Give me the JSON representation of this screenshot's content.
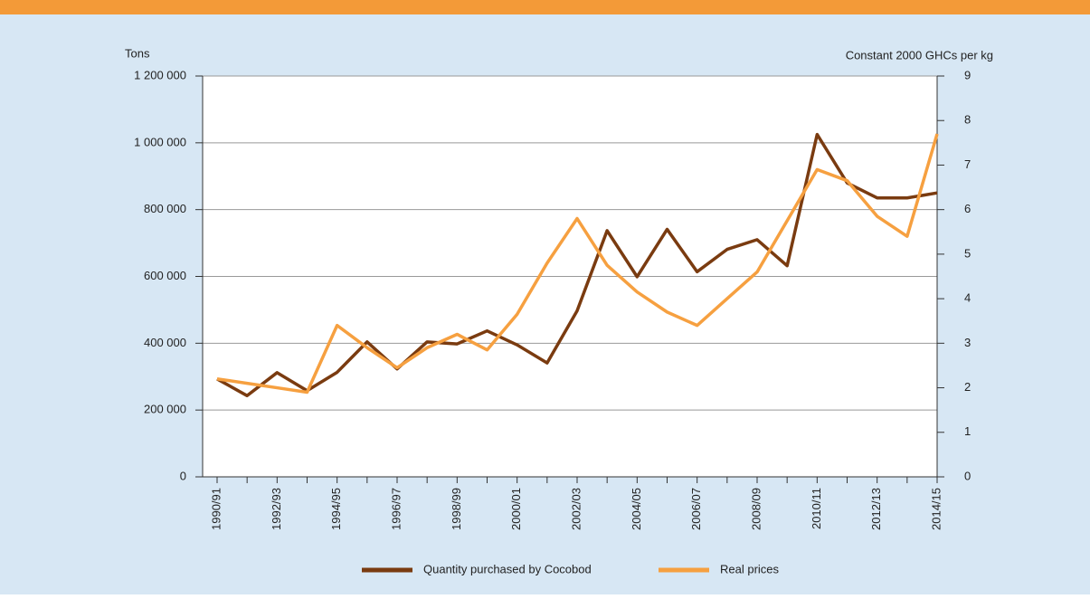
{
  "chart_data": {
    "type": "line",
    "y_label": "Tons",
    "y2_label": "Constant 2000 GHCs per kg",
    "categories": [
      "1990/91",
      null,
      "1992/93",
      null,
      "1994/95",
      null,
      "1996/97",
      null,
      "1998/99",
      null,
      "2000/01",
      null,
      "2002/03",
      null,
      "2004/05",
      null,
      "2006/07",
      null,
      "2008/09",
      null,
      "2010/11",
      null,
      "2012/13",
      null,
      "2014/15"
    ],
    "series": [
      {
        "name": "Quantity purchased by Cocobod",
        "color": "#7a3b10",
        "values": [
          293000,
          243000,
          312000,
          258000,
          313000,
          404000,
          323000,
          404000,
          398000,
          437000,
          395000,
          341000,
          497000,
          737000,
          599000,
          741000,
          614000,
          681000,
          710000,
          632000,
          1025000,
          880000,
          835000,
          835000,
          850000
        ]
      },
      {
        "name": "Real prices",
        "color": "#f6a040",
        "axis": "y2",
        "values": [
          2.2,
          2.1,
          2.0,
          1.9,
          3.4,
          2.9,
          2.45,
          2.9,
          3.2,
          2.85,
          3.65,
          4.8,
          5.8,
          4.75,
          4.15,
          3.7,
          3.4,
          4.0,
          4.6,
          5.75,
          6.9,
          6.65,
          5.85,
          5.4,
          7.7
        ]
      }
    ],
    "ylim": [
      0,
      1200000
    ],
    "yticks": [
      0,
      {
        "value": 200000,
        "label": "200 000"
      },
      {
        "value": 400000,
        "label": "400 000"
      },
      {
        "value": 600000,
        "label": "600 000"
      },
      {
        "value": 800000,
        "label": "800 000"
      },
      {
        "value": 1000000,
        "label": "1 000 000"
      },
      {
        "value": 1200000,
        "label": "1 200 000"
      }
    ],
    "y2lim": [
      0,
      9
    ],
    "y2ticks": [
      0,
      1,
      2,
      3,
      4,
      5,
      6,
      7,
      8,
      9
    ],
    "grid": true,
    "legend": "bottom"
  }
}
